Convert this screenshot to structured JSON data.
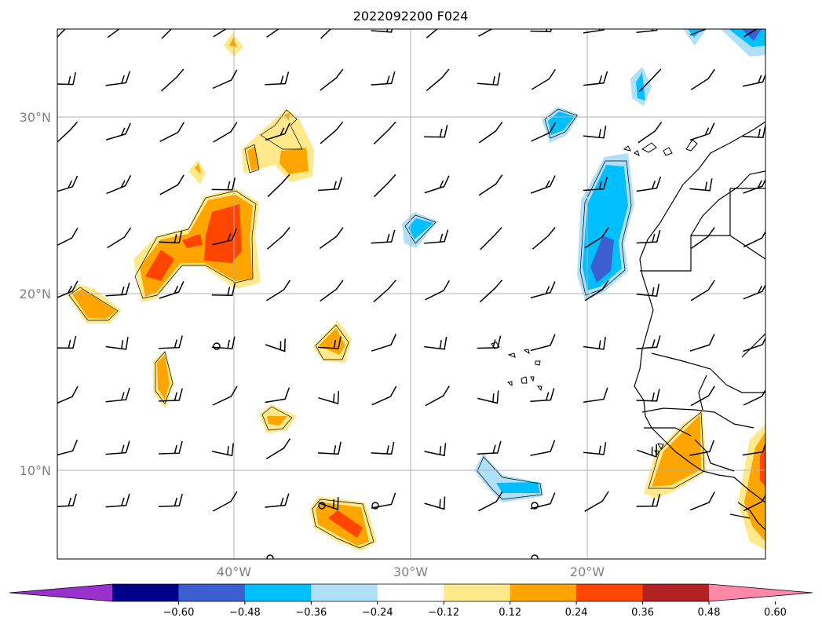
{
  "title": "2022092200 F024",
  "map": {
    "lon_range": [
      -50,
      -10
    ],
    "lat_range": [
      5,
      35
    ],
    "lat_labels": [
      "30°N",
      "20°N",
      "10°N"
    ],
    "lat_values": [
      30,
      20,
      10
    ],
    "lon_labels": [
      "40°W",
      "30°W",
      "20°W"
    ],
    "lon_values": [
      -40,
      -30,
      -20
    ],
    "gridlines": true,
    "wind_barbs": true
  },
  "colorbar": {
    "ticks": [
      "−0.60",
      "−0.48",
      "−0.36",
      "−0.24",
      "−0.12",
      "0.12",
      "0.24",
      "0.36",
      "0.48",
      "0.60"
    ],
    "under_color": "#9932cc",
    "over_color": "#ff88aa",
    "colors": [
      "#00008b",
      "#3b5fd1",
      "#00bfff",
      "#b0e0f8",
      "#ffffff",
      "#ffe98a",
      "#ffa500",
      "#ff4500",
      "#b22222"
    ]
  },
  "colors": {
    "c1": "#ffe98a",
    "c2": "#ffa500",
    "c3": "#ff4500",
    "b1": "#b0e0f8",
    "b2": "#00bfff",
    "b3": "#3b5fd1"
  }
}
